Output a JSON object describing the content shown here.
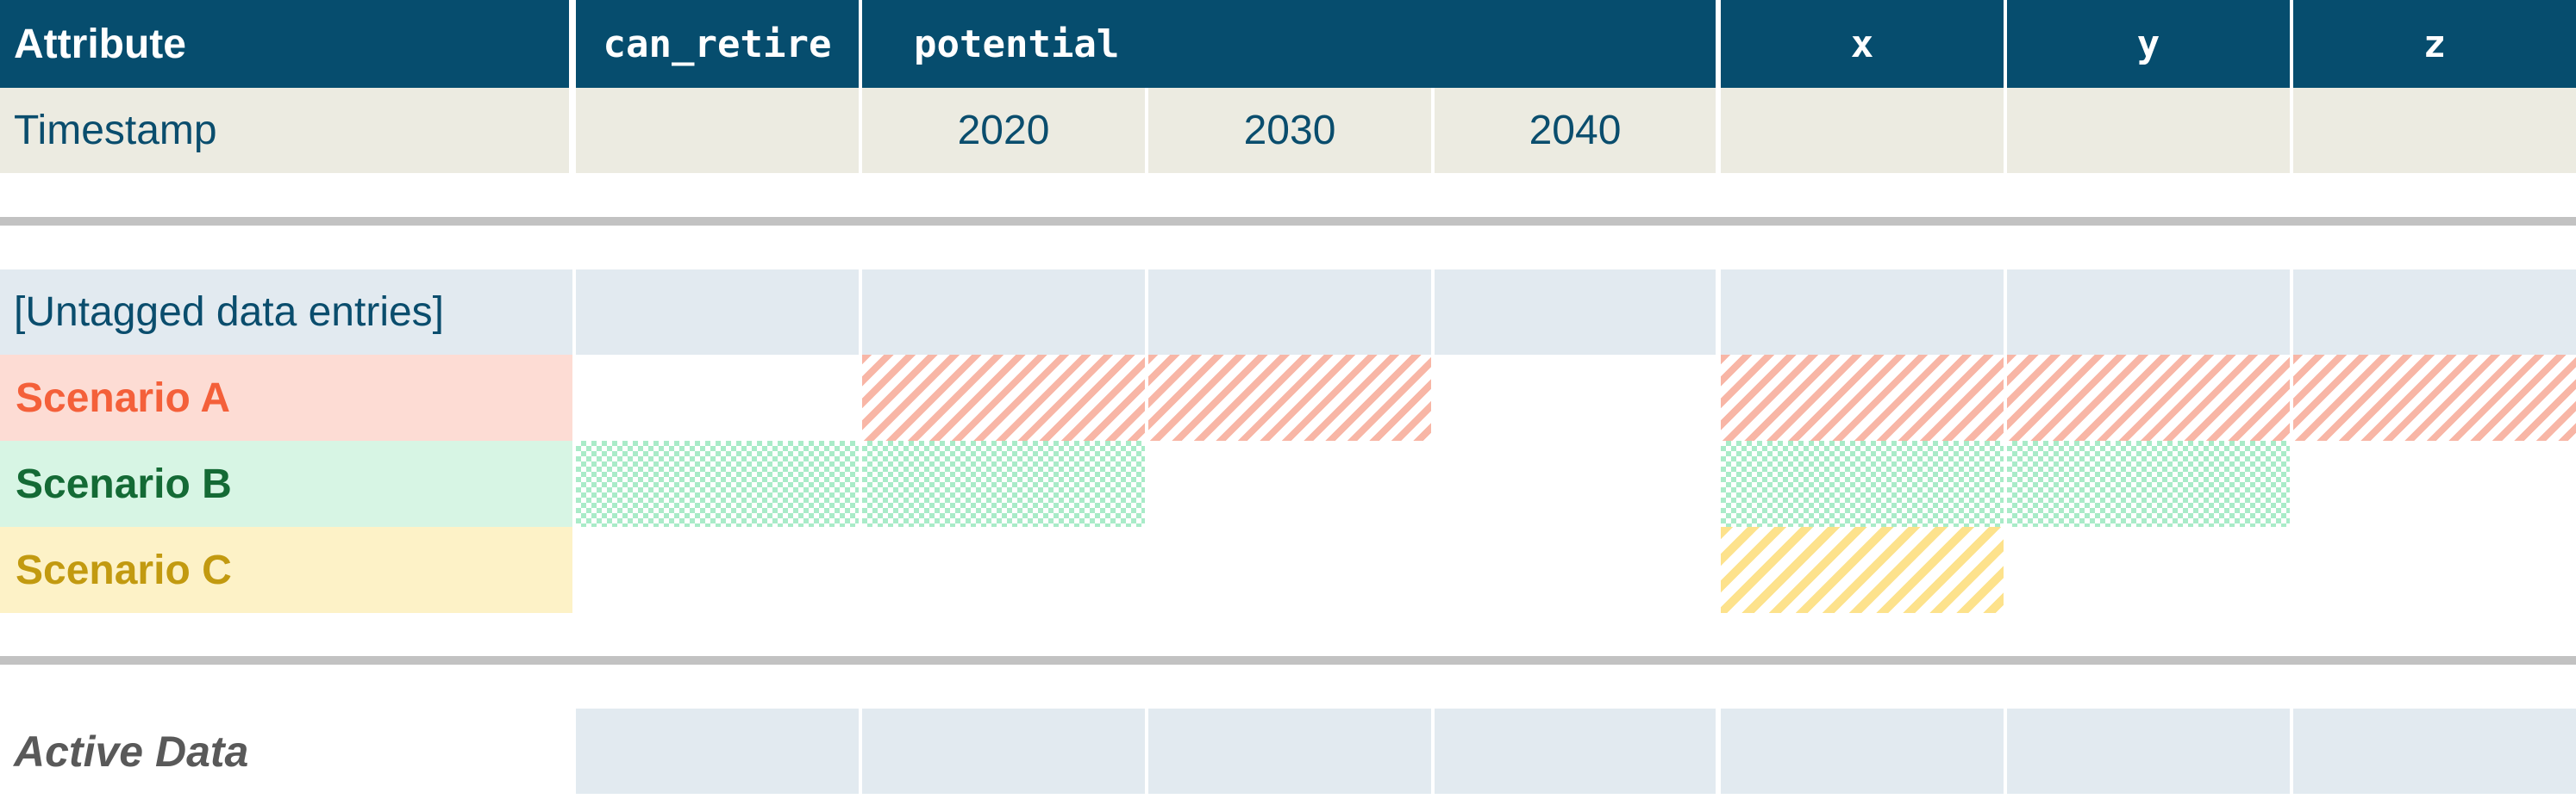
{
  "header": {
    "attribute_label": "Attribute",
    "columns": [
      "can_retire",
      "potential",
      "x",
      "y",
      "z"
    ]
  },
  "timestamp": {
    "label": "Timestamp",
    "years": [
      "2020",
      "2030",
      "2040"
    ]
  },
  "rows": {
    "untagged_label": "[Untagged data entries]",
    "scenario_a": "Scenario A",
    "scenario_b": "Scenario B",
    "scenario_c": "Scenario C",
    "active_label": "Active Data"
  },
  "colors": {
    "header_bg": "#064d6e",
    "timestamp_bg": "#ecebe1",
    "untagged_bg": "#e2eaf0",
    "scenario_a": "#f4603a",
    "scenario_b": "#146a35",
    "scenario_c": "#c29a10",
    "separator": "#c2c2c2"
  },
  "coverage": {
    "scenario_a": [
      "potential.2020",
      "potential.2030",
      "x",
      "y",
      "z"
    ],
    "scenario_b": [
      "can_retire",
      "potential.2020",
      "x",
      "y"
    ],
    "scenario_c": [
      "x"
    ]
  }
}
